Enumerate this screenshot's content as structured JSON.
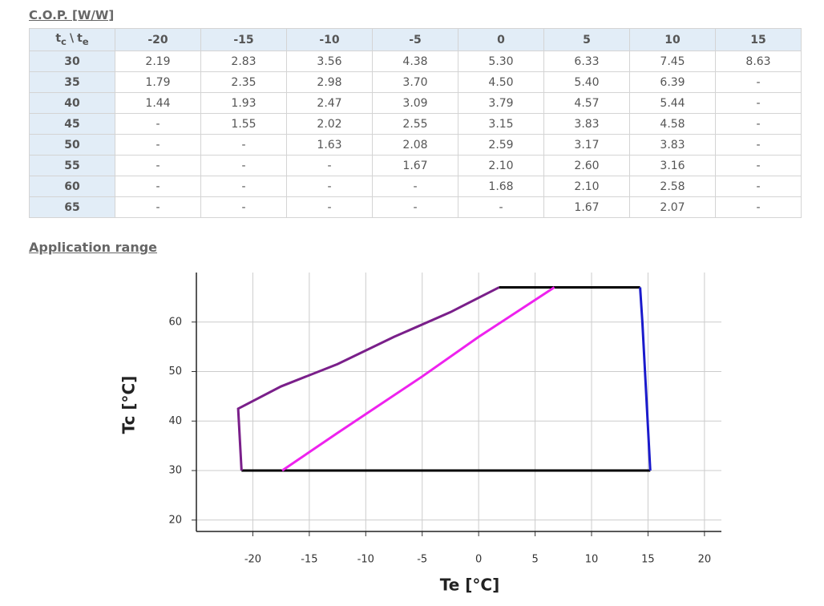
{
  "header": {
    "title": "C.O.P. [W/W]"
  },
  "table": {
    "corner": {
      "a": "t",
      "a_sub": "c",
      "sep": "\\",
      "b": "t",
      "b_sub": "e"
    },
    "columns": [
      -20,
      -15,
      -10,
      -5,
      0,
      5,
      10,
      15
    ],
    "row_labels": [
      30,
      35,
      40,
      45,
      50,
      55,
      60,
      65
    ],
    "rows": [
      [
        "2.19",
        "2.83",
        "3.56",
        "4.38",
        "5.30",
        "6.33",
        "7.45",
        "8.63"
      ],
      [
        "1.79",
        "2.35",
        "2.98",
        "3.70",
        "4.50",
        "5.40",
        "6.39",
        "-"
      ],
      [
        "1.44",
        "1.93",
        "2.47",
        "3.09",
        "3.79",
        "4.57",
        "5.44",
        "-"
      ],
      [
        "-",
        "1.55",
        "2.02",
        "2.55",
        "3.15",
        "3.83",
        "4.58",
        "-"
      ],
      [
        "-",
        "-",
        "1.63",
        "2.08",
        "2.59",
        "3.17",
        "3.83",
        "-"
      ],
      [
        "-",
        "-",
        "-",
        "1.67",
        "2.10",
        "2.60",
        "3.16",
        "-"
      ],
      [
        "-",
        "-",
        "-",
        "-",
        "1.68",
        "2.10",
        "2.58",
        "-"
      ],
      [
        "-",
        "-",
        "-",
        "-",
        "-",
        "1.67",
        "2.07",
        "-"
      ]
    ]
  },
  "section": {
    "title": "Application range"
  },
  "chart_data": {
    "type": "line",
    "x_label": "Te [°C]",
    "y_label": "Tc [°C]",
    "xlim": [
      -25,
      21.5
    ],
    "ylim": [
      17.7,
      70
    ],
    "xticks": [
      -20,
      -15,
      -10,
      -5,
      0,
      5,
      10,
      15,
      20
    ],
    "yticks": [
      20,
      30,
      40,
      50,
      60
    ],
    "grid": true,
    "series": [
      {
        "color": "#000000",
        "x": [
          1.8,
          14.3,
          null,
          -21,
          15.2
        ],
        "values": [
          67,
          67,
          null,
          30,
          30
        ]
      },
      {
        "color": "#7a1f8a",
        "x": [
          -21,
          -21.3,
          -17.5,
          -12.5,
          -7.5,
          -2.5,
          1.8
        ],
        "values": [
          30,
          42.5,
          47,
          51.5,
          57,
          62,
          67
        ]
      },
      {
        "color": "#1a1acc",
        "x": [
          14.3,
          14.5,
          15.2
        ],
        "values": [
          67,
          60,
          30
        ]
      },
      {
        "color": "#ee22ee",
        "x": [
          -17.4,
          -12.5,
          -5,
          0,
          6.7
        ],
        "values": [
          30,
          37.6,
          49,
          57,
          67
        ]
      }
    ]
  }
}
